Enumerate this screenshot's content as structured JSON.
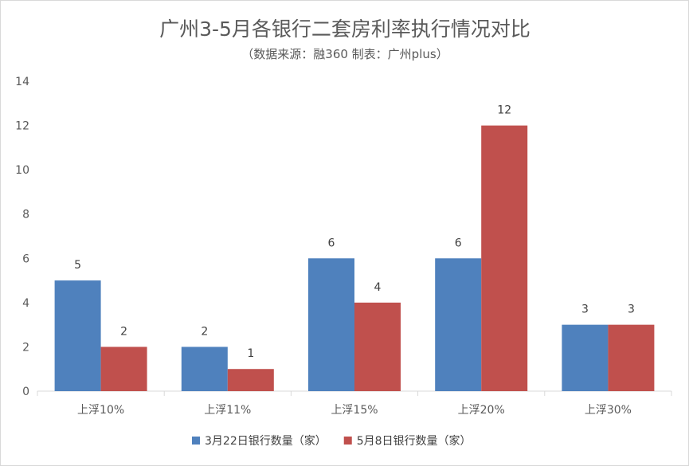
{
  "chart_data": {
    "type": "bar",
    "title": "广州3-5月各银行二套房利率执行情况对比",
    "subtitle": "（数据来源：融360  制表：广州plus）",
    "categories": [
      "上浮10%",
      "上浮11%",
      "上浮15%",
      "上浮20%",
      "上浮30%"
    ],
    "series": [
      {
        "name": "3月22日银行数量（家）",
        "values": [
          5,
          2,
          6,
          6,
          3
        ],
        "color": "#4f81bd"
      },
      {
        "name": "5月8日银行数量（家）",
        "values": [
          2,
          1,
          4,
          12,
          3
        ],
        "color": "#c0504d"
      }
    ],
    "ylim": [
      0,
      14
    ],
    "yticks": [
      0,
      2,
      4,
      6,
      8,
      10,
      12,
      14
    ],
    "xlabel": "",
    "ylabel": "",
    "grid": false,
    "legend": "bottom",
    "data_labels": true
  }
}
